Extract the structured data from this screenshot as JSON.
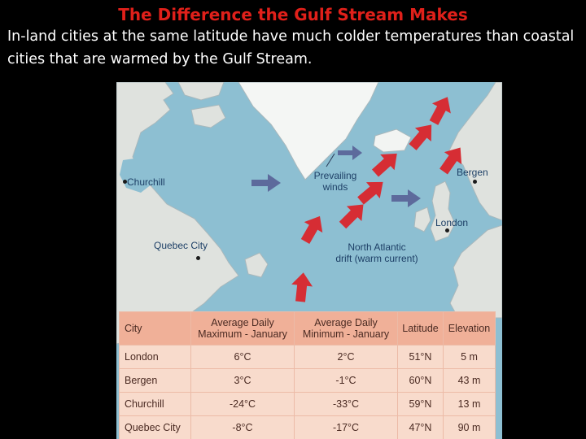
{
  "slide": {
    "title": "The Difference the Gulf Stream Makes",
    "subtitle": "In-land cities at the same latitude have much colder temperatures than coastal cities that are warmed by the Gulf Stream."
  },
  "map": {
    "labels": {
      "churchill": "Churchill",
      "quebec": "Quebec City",
      "bergen": "Bergen",
      "london": "London",
      "prevailing_line1": "Prevailing",
      "prevailing_line2": "winds",
      "drift_line1": "North Atlantic",
      "drift_line2": "drift (warm current)"
    },
    "colors": {
      "ocean": "#8dbfd2",
      "land": "#dfe2de",
      "ice": "#f4f6f4",
      "current_arrow": "#d62d34",
      "wind_arrow": "#5d6a9c"
    }
  },
  "table": {
    "headers": [
      "City",
      "Average Daily Maximum - January",
      "Average Daily Minimum - January",
      "Latitude",
      "Elevation"
    ],
    "rows": [
      [
        "London",
        "6°C",
        "2°C",
        "51°N",
        "5 m"
      ],
      [
        "Bergen",
        "3°C",
        "-1°C",
        "60°N",
        "43 m"
      ],
      [
        "Churchill",
        "-24°C",
        "-33°C",
        "59°N",
        "13 m"
      ],
      [
        "Quebec City",
        "-8°C",
        "-17°C",
        "47°N",
        "90 m"
      ]
    ]
  }
}
